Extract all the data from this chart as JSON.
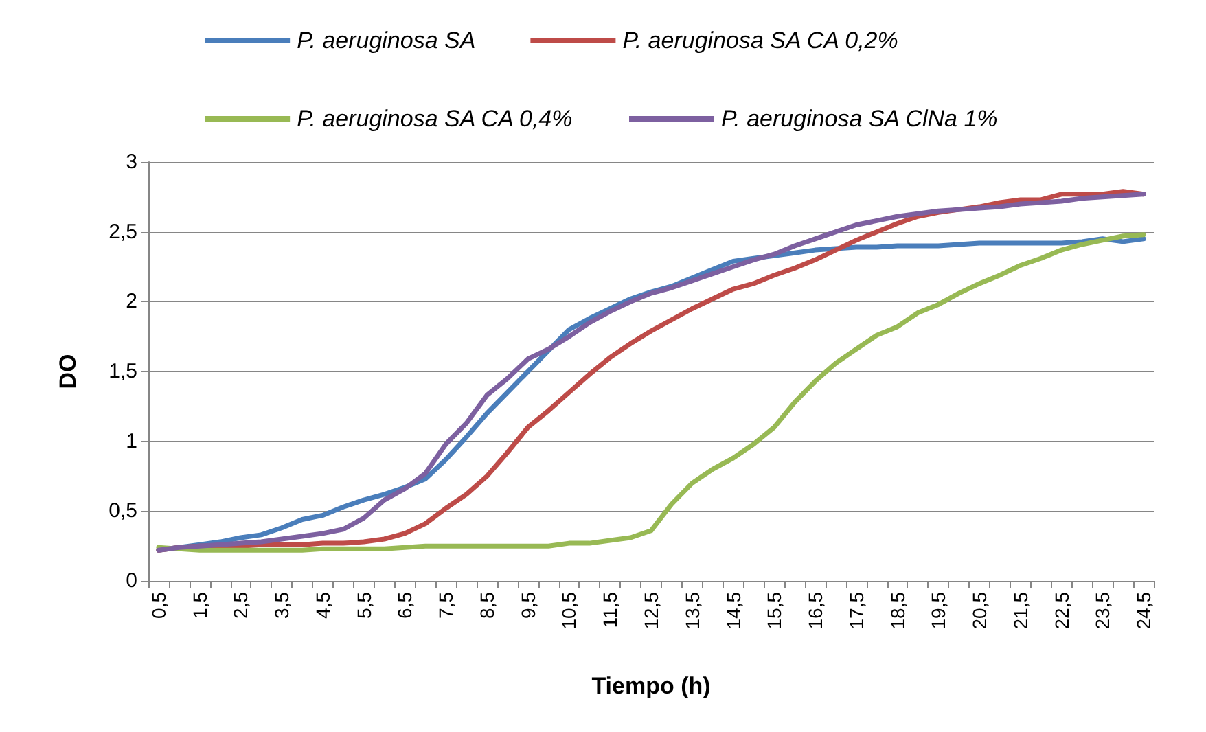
{
  "chart_data": {
    "type": "line",
    "xlabel": "Tiempo (h)",
    "ylabel": "DO",
    "categories": [
      "0,5",
      null,
      "1,5",
      null,
      "2,5",
      null,
      "3,5",
      null,
      "4,5",
      null,
      "5,5",
      null,
      "6,5",
      null,
      "7,5",
      null,
      "8,5",
      null,
      "9,5",
      null,
      "10,5",
      null,
      "11,5",
      null,
      "12,5",
      null,
      "13,5",
      null,
      "14,5",
      null,
      "15,5",
      null,
      "16,5",
      null,
      "17,5",
      null,
      "18,5",
      null,
      "19,5",
      null,
      "20,5",
      null,
      "21,5",
      null,
      "22,5",
      null,
      "23,5",
      null,
      "24,5"
    ],
    "ylim": [
      0,
      3
    ],
    "yticks": [
      {
        "value": 0,
        "label": "0"
      },
      {
        "value": 0.5,
        "label": "0,5"
      },
      {
        "value": 1,
        "label": "1"
      },
      {
        "value": 1.5,
        "label": "1,5"
      },
      {
        "value": 2,
        "label": "2"
      },
      {
        "value": 2.5,
        "label": "2,5"
      },
      {
        "value": 3,
        "label": "3"
      }
    ],
    "grid": "y",
    "legend": "top",
    "marker": "none",
    "line_style": "solid",
    "series": [
      {
        "name": "P. aeruginosa SA",
        "color": "#4a7ebb",
        "values": [
          0.22,
          0.24,
          0.26,
          0.28,
          0.31,
          0.33,
          0.38,
          0.44,
          0.47,
          0.53,
          0.58,
          0.62,
          0.67,
          0.73,
          0.87,
          1.03,
          1.2,
          1.35,
          1.5,
          1.65,
          1.8,
          1.88,
          1.95,
          2.02,
          2.07,
          2.11,
          2.17,
          2.23,
          2.29,
          2.31,
          2.33,
          2.35,
          2.37,
          2.38,
          2.39,
          2.39,
          2.4,
          2.4,
          2.4,
          2.41,
          2.42,
          2.42,
          2.42,
          2.42,
          2.42,
          2.43,
          2.45,
          2.43,
          2.45
        ]
      },
      {
        "name": "P. aeruginosa SA CA 0,2%",
        "color": "#be4b48",
        "values": [
          0.22,
          0.24,
          0.25,
          0.25,
          0.25,
          0.26,
          0.26,
          0.26,
          0.27,
          0.27,
          0.28,
          0.3,
          0.34,
          0.41,
          0.52,
          0.62,
          0.75,
          0.92,
          1.1,
          1.22,
          1.35,
          1.48,
          1.6,
          1.7,
          1.79,
          1.87,
          1.95,
          2.02,
          2.09,
          2.13,
          2.19,
          2.24,
          2.3,
          2.37,
          2.44,
          2.5,
          2.56,
          2.61,
          2.64,
          2.66,
          2.68,
          2.71,
          2.73,
          2.73,
          2.77,
          2.77,
          2.77,
          2.79,
          2.77
        ]
      },
      {
        "name": "P. aeruginosa SA CA 0,4%",
        "color": "#98b954",
        "values": [
          0.24,
          0.23,
          0.22,
          0.22,
          0.22,
          0.22,
          0.22,
          0.22,
          0.23,
          0.23,
          0.23,
          0.23,
          0.24,
          0.25,
          0.25,
          0.25,
          0.25,
          0.25,
          0.25,
          0.25,
          0.27,
          0.27,
          0.29,
          0.31,
          0.36,
          0.55,
          0.7,
          0.8,
          0.88,
          0.98,
          1.1,
          1.28,
          1.43,
          1.56,
          1.66,
          1.76,
          1.82,
          1.92,
          1.98,
          2.06,
          2.13,
          2.19,
          2.26,
          2.31,
          2.37,
          2.41,
          2.44,
          2.47,
          2.48
        ]
      },
      {
        "name": "P. aeruginosa SA ClNa 1%",
        "color": "#7d60a0",
        "values": [
          0.22,
          0.24,
          0.25,
          0.26,
          0.27,
          0.28,
          0.3,
          0.32,
          0.34,
          0.37,
          0.45,
          0.58,
          0.66,
          0.77,
          0.98,
          1.13,
          1.33,
          1.45,
          1.59,
          1.66,
          1.75,
          1.85,
          1.93,
          2.0,
          2.06,
          2.1,
          2.15,
          2.2,
          2.25,
          2.3,
          2.34,
          2.4,
          2.45,
          2.5,
          2.55,
          2.58,
          2.61,
          2.63,
          2.65,
          2.66,
          2.67,
          2.68,
          2.7,
          2.71,
          2.72,
          2.74,
          2.75,
          2.76,
          2.77
        ]
      }
    ]
  }
}
